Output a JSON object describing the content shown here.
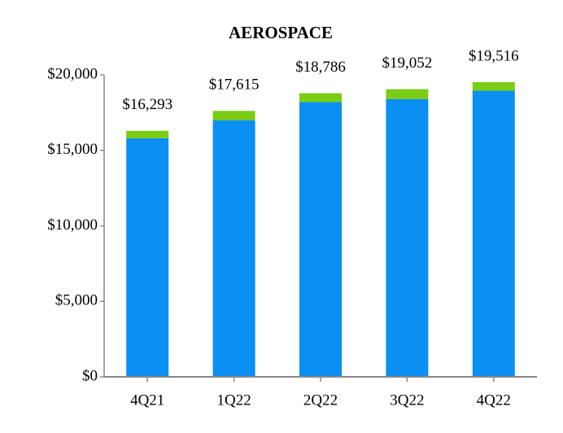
{
  "chart_data": {
    "type": "stacked_bar",
    "title": "AEROSPACE",
    "categories": [
      "4Q21",
      "1Q22",
      "2Q22",
      "3Q22",
      "4Q22"
    ],
    "series": [
      {
        "color": "#0a8ff2",
        "values": [
          15800,
          17000,
          18200,
          18400,
          18950
        ]
      },
      {
        "color": "#7acc14",
        "values": [
          493,
          615,
          586,
          652,
          566
        ]
      }
    ],
    "totals": [
      16293,
      17615,
      18786,
      19052,
      19516
    ],
    "total_labels": [
      "$16,293",
      "$17,615",
      "$18,786",
      "$19,052",
      "$19,516"
    ],
    "ylim": [
      0,
      20000
    ],
    "yticks": [
      {
        "value": 0,
        "label": "$0"
      },
      {
        "value": 5000,
        "label": "$5,000"
      },
      {
        "value": 10000,
        "label": "$10,000"
      },
      {
        "value": 15000,
        "label": "$15,000"
      },
      {
        "value": 20000,
        "label": "$20,000"
      }
    ]
  }
}
